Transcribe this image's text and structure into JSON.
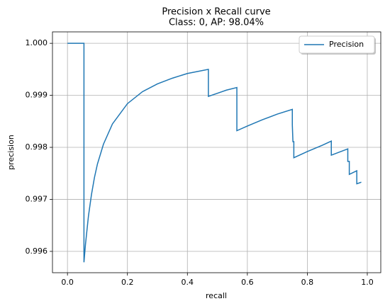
{
  "chart_data": {
    "type": "line",
    "title": "Precision x Recall curve",
    "subtitle": "Class: 0, AP: 98.04%",
    "x_label": "recall",
    "y_label": "precision",
    "x": [
      0,
      0.055,
      0.055,
      0.06,
      0.07,
      0.08,
      0.09,
      0.1,
      0.12,
      0.15,
      0.2,
      0.25,
      0.3,
      0.35,
      0.4,
      0.47,
      0.47,
      0.5,
      0.53,
      0.565,
      0.565,
      0.565,
      0.6,
      0.65,
      0.7,
      0.75,
      0.75,
      0.752,
      0.755,
      0.755,
      0.8,
      0.85,
      0.88,
      0.88,
      0.935,
      0.935,
      0.94,
      0.94,
      0.965,
      0.965,
      0.98
    ],
    "series": [
      {
        "name": "Precision",
        "color": "#1f77b4",
        "values": [
          1.0,
          1.0,
          0.99579,
          0.99613,
          0.99668,
          0.99709,
          0.99742,
          0.99768,
          0.99806,
          0.99845,
          0.99884,
          0.99907,
          0.99922,
          0.99933,
          0.99942,
          0.9995,
          0.99898,
          0.99904,
          0.9991,
          0.99915,
          0.99873,
          0.99832,
          0.99841,
          0.99853,
          0.99864,
          0.99873,
          0.99843,
          0.99811,
          0.99811,
          0.9978,
          0.99792,
          0.99804,
          0.99812,
          0.99785,
          0.99797,
          0.99773,
          0.99773,
          0.99748,
          0.99755,
          0.9973,
          0.99733
        ]
      }
    ],
    "xlim": [
      -0.05,
      1.045
    ],
    "ylim": [
      0.99559,
      1.00022
    ],
    "xticks": [
      {
        "value": 0,
        "label": "0.0"
      },
      0.2,
      0.4,
      0.6,
      0.8,
      {
        "value": 1,
        "label": "1.0"
      }
    ],
    "yticks": [
      0.996,
      0.997,
      0.998,
      0.999,
      {
        "value": 1,
        "label": "1.000"
      }
    ],
    "grid": true,
    "legend": "upper right"
  }
}
